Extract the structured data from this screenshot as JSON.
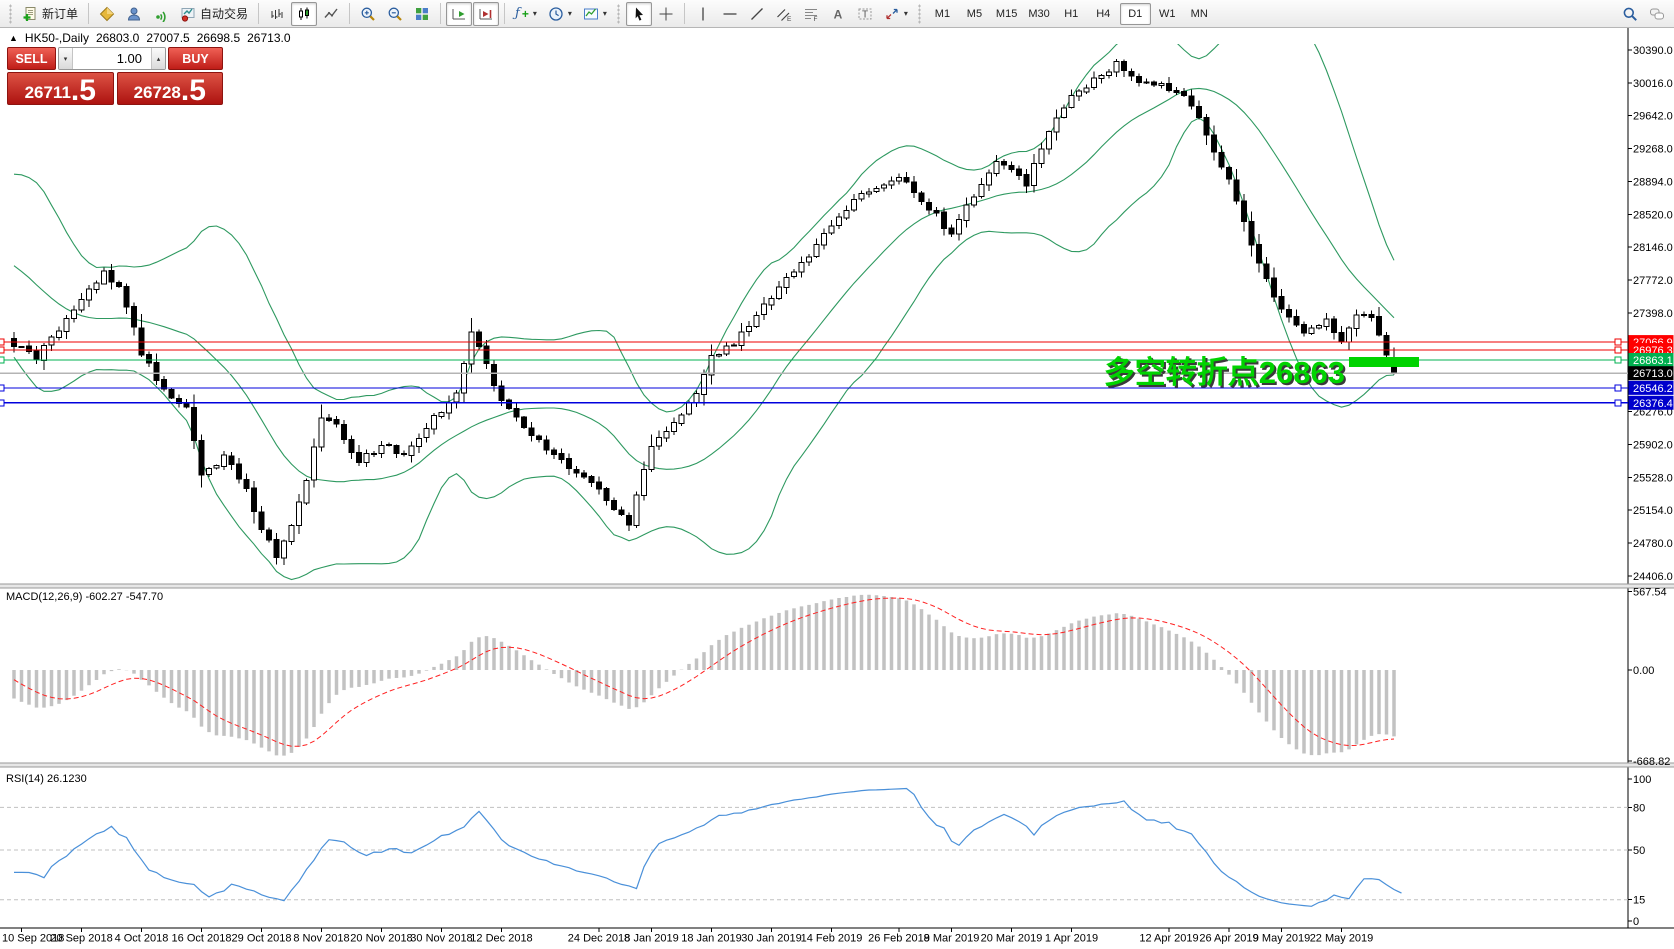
{
  "toolbar": {
    "new_order_label": "新订单",
    "autotrading_label": "自动交易",
    "timeframes": [
      "M1",
      "M5",
      "M15",
      "M30",
      "H1",
      "H4",
      "D1",
      "W1",
      "MN"
    ],
    "active_timeframe": "D1"
  },
  "icons": {
    "caret": "▾",
    "spin_up": "▴",
    "spin_down": "▾",
    "collapse_arrow": "▲",
    "channel_letter": "E",
    "fibo_letter": "F",
    "text_letter": "A",
    "label_letter": "T",
    "indicator_f": "ƒ",
    "plus": "+"
  },
  "chart_header": {
    "symbol_period": "HK50-,Daily",
    "open": "26803.0",
    "high": "27007.5",
    "low": "26698.5",
    "close": "26713.0"
  },
  "trade_panel": {
    "sell_label": "SELL",
    "buy_label": "BUY",
    "volume": "1.00",
    "bid_main": "26711",
    "bid_pip": ".5",
    "ask_main": "26728",
    "ask_pip": ".5"
  },
  "macd_panel": {
    "label": "MACD(12,26,9) -602.27 -547.70",
    "axis": [
      "567.54",
      "0.00",
      "-668.82"
    ]
  },
  "rsi_panel": {
    "label": "RSI(14) 26.1230",
    "axis": [
      100,
      80,
      50,
      15,
      0
    ],
    "levels": [
      80,
      50,
      15
    ]
  },
  "colors": {
    "candle_up_fill": "#ffffff",
    "candle_down_fill": "#000000",
    "candle_stroke": "#000000",
    "bollinger": "#2e9960",
    "macd_hist": "#c2c2c2",
    "macd_signal": "#ff2222",
    "rsi_line": "#4a90d9",
    "line_red": "#ee0000",
    "line_green": "#00b050",
    "line_blue": "#0000dd",
    "bid_line": "#b4b4b4",
    "annotation_green": "#00d300",
    "annotation_shadow": "#3a3a3a"
  },
  "chart_data": {
    "type": "candlestick",
    "title": "HK50-,Daily",
    "bars": 185,
    "ylim": [
      24406.0,
      30390.0
    ],
    "last_bar": {
      "open": 26803.0,
      "high": 27007.5,
      "low": 26698.5,
      "close": 26713.0
    },
    "price_axis": [
      30390.0,
      30016.0,
      29642.0,
      29268.0,
      28894.0,
      28520.0,
      28146.0,
      27772.0,
      27398.0,
      26276.0,
      25902.0,
      25528.0,
      25154.0,
      24780.0,
      24406.0
    ],
    "close_waypoints": [
      [
        -25,
        27600
      ],
      [
        -20,
        28200
      ],
      [
        -15,
        28650
      ],
      [
        -10,
        28100
      ],
      [
        -5,
        27500
      ],
      [
        -1,
        27150
      ],
      [
        0,
        27050
      ],
      [
        3,
        26900
      ],
      [
        6,
        27200
      ],
      [
        9,
        27550
      ],
      [
        12,
        27850
      ],
      [
        14,
        27700
      ],
      [
        16,
        27250
      ],
      [
        17,
        26950
      ],
      [
        20,
        26500
      ],
      [
        23,
        26300
      ],
      [
        25,
        25550
      ],
      [
        28,
        25750
      ],
      [
        31,
        25400
      ],
      [
        33,
        24950
      ],
      [
        35,
        24650
      ],
      [
        37,
        24950
      ],
      [
        39,
        25500
      ],
      [
        41,
        26200
      ],
      [
        43,
        26100
      ],
      [
        46,
        25700
      ],
      [
        49,
        25900
      ],
      [
        52,
        25780
      ],
      [
        55,
        26100
      ],
      [
        57,
        26300
      ],
      [
        59,
        26500
      ],
      [
        61,
        27200
      ],
      [
        63,
        26800
      ],
      [
        65,
        26400
      ],
      [
        68,
        26100
      ],
      [
        71,
        25850
      ],
      [
        74,
        25650
      ],
      [
        78,
        25400
      ],
      [
        80,
        25150
      ],
      [
        82,
        25020
      ],
      [
        84,
        25650
      ],
      [
        85,
        25900
      ],
      [
        88,
        26150
      ],
      [
        91,
        26500
      ],
      [
        93,
        26900
      ],
      [
        96,
        27050
      ],
      [
        99,
        27350
      ],
      [
        101,
        27600
      ],
      [
        104,
        27900
      ],
      [
        107,
        28150
      ],
      [
        109,
        28400
      ],
      [
        112,
        28650
      ],
      [
        115,
        28850
      ],
      [
        118,
        28950
      ],
      [
        120,
        28800
      ],
      [
        122,
        28600
      ],
      [
        125,
        28300
      ],
      [
        128,
        28750
      ],
      [
        131,
        29100
      ],
      [
        133,
        29000
      ],
      [
        135,
        28870
      ],
      [
        137,
        29300
      ],
      [
        139,
        29600
      ],
      [
        141,
        29850
      ],
      [
        144,
        30050
      ],
      [
        147,
        30220
      ],
      [
        150,
        30020
      ],
      [
        154,
        29960
      ],
      [
        157,
        29780
      ],
      [
        159,
        29400
      ],
      [
        162,
        28950
      ],
      [
        164,
        28400
      ],
      [
        166,
        27950
      ],
      [
        169,
        27450
      ],
      [
        172,
        27150
      ],
      [
        175,
        27320
      ],
      [
        177,
        27050
      ],
      [
        179,
        27380
      ],
      [
        181,
        27320
      ],
      [
        183,
        26950
      ],
      [
        184,
        26713
      ]
    ],
    "horizontal_lines": [
      {
        "value": 27066.9,
        "color": "#ee0000",
        "label_bg": "#ff0000",
        "handles": true
      },
      {
        "value": 26976.3,
        "color": "#ee0000",
        "label_bg": "#ff0000",
        "handles": true
      },
      {
        "value": 26863.1,
        "color": "#00b050",
        "label_bg": "#00b050",
        "handles": true
      },
      {
        "value": 26713.0,
        "color": "#b4b4b4",
        "label_bg": "#000000",
        "handles": false
      },
      {
        "value": 26546.2,
        "color": "#0000dd",
        "label_bg": "#0000cc",
        "handles": true
      },
      {
        "value": 26376.4,
        "color": "#0000dd",
        "label_bg": "#0000cc",
        "handles": true
      }
    ],
    "indicators": [
      {
        "name": "Bollinger Bands",
        "period": 20,
        "deviation": 2
      },
      {
        "name": "MACD",
        "fast": 12,
        "slow": 26,
        "signal": 9,
        "values": [
          -602.27,
          -547.7
        ]
      },
      {
        "name": "RSI",
        "period": 14,
        "value": 26.123
      }
    ],
    "annotation": {
      "text": "多空转折点26863",
      "highlight_rect": {
        "x": 1349,
        "y": 357,
        "w": 70,
        "h": 10
      }
    },
    "date_axis": {
      "labels": [
        "10 Sep 2018",
        "20 Sep 2018",
        "4 Oct 2018",
        "16 Oct 2018",
        "29 Oct 2018",
        "8 Nov 2018",
        "20 Nov 2018",
        "30 Nov 2018",
        "12 Dec 2018",
        "24 Dec 2018",
        "8 Jan 2019",
        "18 Jan 2019",
        "30 Jan 2019",
        "14 Feb 2019",
        "26 Feb 2019",
        "8 Mar 2019",
        "20 Mar 2019",
        "1 Apr 2019",
        "12 Apr 2019",
        "26 Apr 2019",
        "9 May 2019",
        "22 May 2019"
      ],
      "indices": [
        1,
        9,
        17,
        25,
        33,
        41,
        49,
        57,
        65,
        78,
        85,
        93,
        101,
        109,
        118,
        125,
        133,
        141,
        154,
        162,
        169,
        177
      ]
    }
  }
}
